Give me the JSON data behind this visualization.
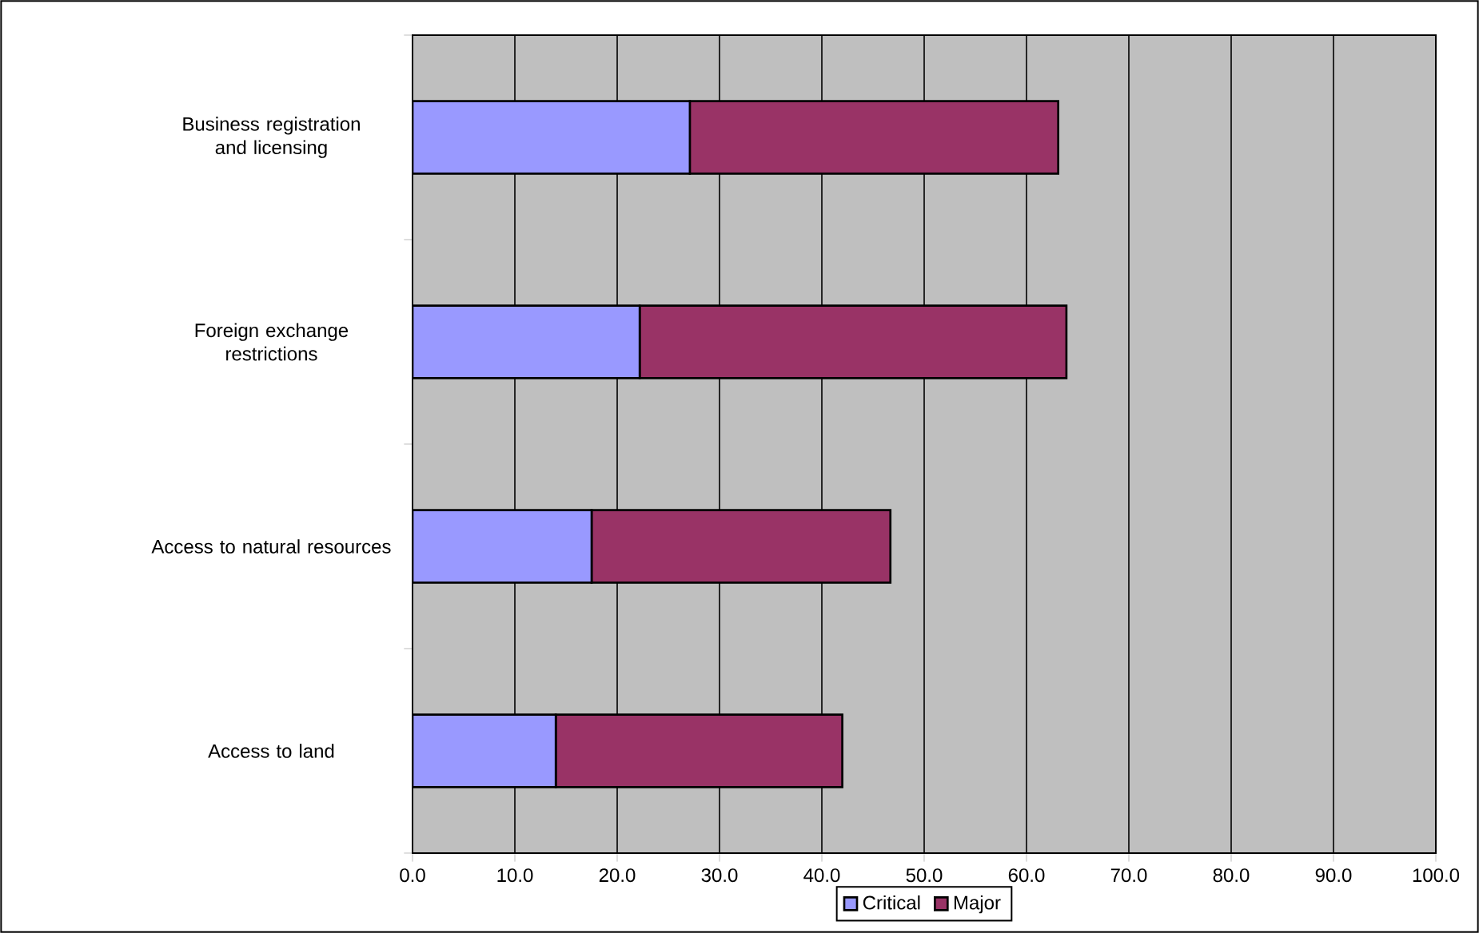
{
  "chart_data": {
    "type": "bar",
    "orientation": "horizontal",
    "stacked": true,
    "categories": [
      "Business registration and licensing",
      "Foreign exchange restrictions",
      "Access to natural resources",
      "Access to land"
    ],
    "series": [
      {
        "name": "Critical",
        "color": "#9999ff",
        "values": [
          27.1,
          22.2,
          17.5,
          14.0
        ]
      },
      {
        "name": "Major",
        "color": "#993366",
        "values": [
          36.0,
          41.7,
          29.2,
          28.0
        ]
      }
    ],
    "xlim": [
      0,
      100
    ],
    "xticks": [
      {
        "value": 0,
        "label": "0.0"
      },
      {
        "value": 10,
        "label": "10.0"
      },
      {
        "value": 20,
        "label": "20.0"
      },
      {
        "value": 30,
        "label": "30.0"
      },
      {
        "value": 40,
        "label": "40.0"
      },
      {
        "value": 50,
        "label": "50.0"
      },
      {
        "value": 60,
        "label": "60.0"
      },
      {
        "value": 70,
        "label": "70.0"
      },
      {
        "value": 80,
        "label": "80.0"
      },
      {
        "value": 90,
        "label": "90.0"
      },
      {
        "value": 100,
        "label": "100.0"
      }
    ],
    "grid": "x",
    "legend": "bottom"
  }
}
